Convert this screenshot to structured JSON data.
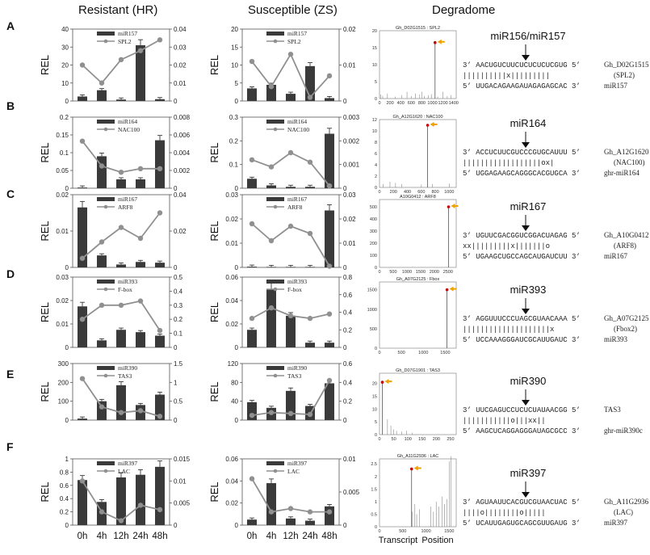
{
  "headers": {
    "resistant": "Resistant (HR)",
    "susceptible": "Susceptible (ZS)",
    "degradome": "Degradome"
  },
  "ylabel": "REL",
  "xaxis": {
    "ticks": [
      "0h",
      "4h",
      "12h",
      "24h",
      "48h"
    ],
    "transcript_label": "Transcript",
    "position_label": "Position"
  },
  "colors": {
    "bar": "#3a3a3a",
    "line": "#909090",
    "peak": "#c00000",
    "arrow": "#f0a000"
  },
  "chart_data": [
    {
      "type": "bar",
      "panel": "A",
      "group": "Resistant (HR)",
      "categories": [
        "0h",
        "4h",
        "12h",
        "24h",
        "48h"
      ],
      "series": [
        {
          "name": "miR157",
          "values": [
            2.5,
            6,
            0.8,
            31,
            1
          ]
        },
        {
          "name": "SPL2",
          "axis": "right",
          "values": [
            0.02,
            0.01,
            0.023,
            0.028,
            0.034
          ]
        }
      ],
      "ylim": [
        0,
        40
      ],
      "y2lim": [
        0,
        0.04
      ],
      "yticks": [
        "0",
        "10",
        "20",
        "30",
        "40"
      ],
      "y2ticks": [
        "0",
        "0.01",
        "0.02",
        "0.03",
        "0.04"
      ],
      "legend": [
        "miR157",
        "SPL2"
      ]
    },
    {
      "type": "bar",
      "panel": "A",
      "group": "Susceptible (ZS)",
      "categories": [
        "0h",
        "4h",
        "12h",
        "24h",
        "48h"
      ],
      "series": [
        {
          "name": "miR157",
          "values": [
            3.5,
            4.5,
            2,
            9.7,
            0.8
          ]
        },
        {
          "name": "SPL2",
          "axis": "right",
          "values": [
            0.011,
            0.004,
            0.013,
            0.001,
            0.007
          ]
        }
      ],
      "ylim": [
        0,
        20
      ],
      "y2lim": [
        0,
        0.02
      ],
      "yticks": [
        "0",
        "5",
        "10",
        "15",
        "20"
      ],
      "y2ticks": [
        "0",
        "0.01",
        "0.02"
      ],
      "legend": [
        "miR157",
        "SPL2"
      ]
    },
    {
      "type": "bar",
      "panel": "B",
      "group": "Resistant (HR)",
      "categories": [
        "0h",
        "4h",
        "12h",
        "24h",
        "48h"
      ],
      "series": [
        {
          "name": "miR164",
          "values": [
            0.002,
            0.09,
            0.025,
            0.025,
            0.135
          ]
        },
        {
          "name": "NAC100",
          "axis": "right",
          "values": [
            0.0053,
            0.0025,
            0.0018,
            0.0022,
            0.0022
          ]
        }
      ],
      "ylim": [
        0,
        0.2
      ],
      "y2lim": [
        0,
        0.008
      ],
      "yticks": [
        "0",
        "0.05",
        "0.1",
        "0.15",
        "0.2"
      ],
      "y2ticks": [
        "0",
        "0.002",
        "0.004",
        "0.006",
        "0.008"
      ],
      "legend": [
        "miR164",
        "NAC100"
      ]
    },
    {
      "type": "bar",
      "panel": "B",
      "group": "Susceptible (ZS)",
      "categories": [
        "0h",
        "4h",
        "12h",
        "24h",
        "48h"
      ],
      "series": [
        {
          "name": "miR164",
          "values": [
            0.04,
            0.012,
            0.006,
            0.006,
            0.23
          ]
        },
        {
          "name": "NAC100",
          "axis": "right",
          "values": [
            0.0012,
            0.0009,
            0.0015,
            0.0011,
            0.0001
          ]
        }
      ],
      "ylim": [
        0,
        0.3
      ],
      "y2lim": [
        0,
        0.003
      ],
      "yticks": [
        "0",
        "0.1",
        "0.2",
        "0.3"
      ],
      "y2ticks": [
        "0",
        "0.001",
        "0.002",
        "0.003"
      ],
      "legend": [
        "miR164",
        "NAC100"
      ]
    },
    {
      "type": "bar",
      "panel": "C",
      "group": "Resistant (HR)",
      "categories": [
        "0h",
        "4h",
        "12h",
        "24h",
        "48h"
      ],
      "series": [
        {
          "name": "miR167",
          "values": [
            0.0165,
            0.0033,
            0.0008,
            0.0015,
            0.0013
          ]
        },
        {
          "name": "ARF8",
          "axis": "right",
          "values": [
            0.005,
            0.014,
            0.022,
            0.016,
            0.03
          ]
        }
      ],
      "ylim": [
        0,
        0.02
      ],
      "y2lim": [
        0,
        0.04
      ],
      "yticks": [
        "0",
        "0.01",
        "0.02"
      ],
      "y2ticks": [
        "0",
        "0.02",
        "0.04"
      ],
      "legend": [
        "miR167",
        "ARF8"
      ]
    },
    {
      "type": "bar",
      "panel": "C",
      "group": "Susceptible (ZS)",
      "categories": [
        "0h",
        "4h",
        "12h",
        "24h",
        "48h"
      ],
      "series": [
        {
          "name": "miR167",
          "values": [
            0.0003,
            0.0002,
            0.0002,
            0.0002,
            0.0235
          ]
        },
        {
          "name": "ARF8",
          "axis": "right",
          "values": [
            0.018,
            0.011,
            0.017,
            0.014,
            0.0005
          ]
        }
      ],
      "ylim": [
        0,
        0.03
      ],
      "y2lim": [
        0,
        0.03
      ],
      "yticks": [
        "0",
        "0.01",
        "0.02",
        "0.03"
      ],
      "y2ticks": [
        "0",
        "0.01",
        "0.02",
        "0.03"
      ],
      "legend": [
        "miR167",
        "ARF8"
      ]
    },
    {
      "type": "bar",
      "panel": "D",
      "group": "Resistant (HR)",
      "categories": [
        "0h",
        "4h",
        "12h",
        "24h",
        "48h"
      ],
      "series": [
        {
          "name": "miR393",
          "values": [
            0.0175,
            0.003,
            0.0075,
            0.0065,
            0.005
          ]
        },
        {
          "name": "F-box",
          "axis": "right",
          "values": [
            0.2,
            0.3,
            0.3,
            0.33,
            0.12
          ]
        }
      ],
      "ylim": [
        0,
        0.03
      ],
      "y2lim": [
        0,
        0.5
      ],
      "yticks": [
        "0",
        "0.01",
        "0.02",
        "0.03"
      ],
      "y2ticks": [
        "0",
        "0.1",
        "0.2",
        "0.3",
        "0.4",
        "0.5"
      ],
      "legend": [
        "miR393",
        "F-box"
      ]
    },
    {
      "type": "bar",
      "panel": "D",
      "group": "Susceptible (ZS)",
      "categories": [
        "0h",
        "4h",
        "12h",
        "24h",
        "48h"
      ],
      "series": [
        {
          "name": "miR393",
          "values": [
            0.015,
            0.05,
            0.027,
            0.004,
            0.004
          ]
        },
        {
          "name": "F-box",
          "axis": "right",
          "values": [
            0.33,
            0.45,
            0.36,
            0.33,
            0.38
          ]
        }
      ],
      "ylim": [
        0,
        0.06
      ],
      "y2lim": [
        0,
        0.8
      ],
      "yticks": [
        "0",
        "0.02",
        "0.04",
        "0.06"
      ],
      "y2ticks": [
        "0",
        "0.2",
        "0.4",
        "0.6",
        "0.8"
      ],
      "legend": [
        "miR393",
        "F-box"
      ]
    },
    {
      "type": "bar",
      "panel": "E",
      "group": "Resistant (HR)",
      "categories": [
        "0h",
        "4h",
        "12h",
        "24h",
        "48h"
      ],
      "series": [
        {
          "name": "miR390",
          "values": [
            8,
            100,
            185,
            80,
            135
          ]
        },
        {
          "name": "TAS3",
          "axis": "right",
          "values": [
            1.1,
            0.35,
            0.2,
            0.25,
            0.1
          ]
        }
      ],
      "ylim": [
        0,
        300
      ],
      "y2lim": [
        0,
        1.5
      ],
      "yticks": [
        "0",
        "100",
        "200",
        "300"
      ],
      "y2ticks": [
        "0",
        "0.5",
        "1",
        "1.5"
      ],
      "legend": [
        "miR390",
        "TAS3"
      ]
    },
    {
      "type": "bar",
      "panel": "E",
      "group": "Susceptible (ZS)",
      "categories": [
        "0h",
        "4h",
        "12h",
        "24h",
        "48h"
      ],
      "series": [
        {
          "name": "miR390",
          "values": [
            38,
            26,
            62,
            30,
            78
          ]
        },
        {
          "name": "TAS3",
          "axis": "right",
          "values": [
            0.05,
            0.08,
            0.07,
            0.06,
            0.42
          ]
        }
      ],
      "ylim": [
        0,
        120
      ],
      "y2lim": [
        0,
        0.6
      ],
      "yticks": [
        "0",
        "40",
        "80",
        "120"
      ],
      "y2ticks": [
        "0",
        "0.2",
        "0.4",
        "0.6"
      ],
      "legend": [
        "miR390",
        "TAS3"
      ]
    },
    {
      "type": "bar",
      "panel": "F",
      "group": "Resistant (HR)",
      "categories": [
        "0h",
        "4h",
        "12h",
        "24h",
        "48h"
      ],
      "series": [
        {
          "name": "miR397",
          "values": [
            0.68,
            0.35,
            0.72,
            0.76,
            0.88
          ]
        },
        {
          "name": "LAC",
          "axis": "right",
          "values": [
            0.01,
            0.003,
            0.001,
            0.0045,
            0.0035
          ]
        }
      ],
      "ylim": [
        0,
        1
      ],
      "y2lim": [
        0,
        0.015
      ],
      "yticks": [
        "0",
        "0.2",
        "0.4",
        "0.6",
        "0.8",
        "1"
      ],
      "y2ticks": [
        "0",
        "0.005",
        "0.01",
        "0.015"
      ],
      "legend": [
        "miR397",
        "LAC"
      ]
    },
    {
      "type": "bar",
      "panel": "F",
      "group": "Susceptible (ZS)",
      "categories": [
        "0h",
        "4h",
        "12h",
        "24h",
        "48h"
      ],
      "series": [
        {
          "name": "miR397",
          "values": [
            0.005,
            0.038,
            0.006,
            0.004,
            0.017
          ]
        },
        {
          "name": "LAC",
          "axis": "right",
          "values": [
            0.007,
            0.002,
            0.0025,
            0.002,
            0.002
          ]
        }
      ],
      "ylim": [
        0,
        0.06
      ],
      "y2lim": [
        0,
        0.01
      ],
      "yticks": [
        "0",
        "0.02",
        "0.04",
        "0.06"
      ],
      "y2ticks": [
        "0",
        "0.005",
        "0.01"
      ],
      "legend": [
        "miR397",
        "LAC"
      ]
    }
  ],
  "degradome": [
    {
      "title": "Gh_D02G1515 : SPL2",
      "yticks": [
        "0",
        "5",
        "10",
        "15",
        "20"
      ],
      "ymax": 20,
      "xticks": [
        "0",
        "200",
        "400",
        "600",
        "800",
        "1000",
        "1200",
        "1400"
      ],
      "xmax": 1450,
      "peak": {
        "x": 1050,
        "y": 16.5
      },
      "bg": [
        [
          20,
          1.2
        ],
        [
          60,
          0.8
        ],
        [
          150,
          1.5
        ],
        [
          300,
          0.6
        ],
        [
          420,
          1
        ],
        [
          520,
          2
        ],
        [
          600,
          0.7
        ],
        [
          680,
          1.5
        ],
        [
          760,
          1.2
        ],
        [
          800,
          2
        ],
        [
          850,
          0.8
        ],
        [
          920,
          1
        ],
        [
          980,
          1.3
        ],
        [
          1100,
          0.6
        ],
        [
          1200,
          2
        ],
        [
          1280,
          0.7
        ],
        [
          1350,
          1
        ]
      ]
    },
    {
      "title": "Gh_A12G1620 : NAC100",
      "yticks": [
        "0",
        "2",
        "4",
        "6",
        "8",
        "10",
        "12"
      ],
      "ymax": 12,
      "xticks": [
        "0",
        "200",
        "400",
        "600",
        "800",
        "1000"
      ],
      "xmax": 1100,
      "peak": {
        "x": 690,
        "y": 11
      },
      "bg": [
        [
          50,
          0.6
        ],
        [
          150,
          1
        ],
        [
          230,
          0.8
        ],
        [
          320,
          0.6
        ],
        [
          600,
          0.5
        ],
        [
          760,
          0.6
        ],
        [
          1000,
          0.7
        ]
      ]
    },
    {
      "title": "A10G0412 : ARF8",
      "yticks": [
        "0",
        "100",
        "200",
        "300",
        "400",
        "500"
      ],
      "ymax": 560,
      "xticks": [
        "0",
        "500",
        "1000",
        "1500",
        "2000",
        "2500"
      ],
      "xmax": 2800,
      "peak": {
        "x": 2520,
        "y": 500
      },
      "bg": [
        [
          400,
          3
        ],
        [
          1200,
          4
        ],
        [
          2000,
          3
        ]
      ]
    },
    {
      "title": "Gh_A07G2125 : Fbox",
      "yticks": [
        "0",
        "500",
        "1000",
        "1500"
      ],
      "ymax": 1700,
      "xticks": [
        "0",
        "500",
        "1000",
        "1500"
      ],
      "xmax": 1750,
      "peak": {
        "x": 1540,
        "y": 1500
      },
      "bg": [
        [
          300,
          8
        ],
        [
          900,
          10
        ],
        [
          1300,
          6
        ]
      ]
    },
    {
      "title": "Gh_D07G1901 : TAS3",
      "yticks": [
        "0",
        "5",
        "10",
        "15",
        "20"
      ],
      "ymax": 24,
      "xticks": [
        "0",
        "50",
        "100",
        "150",
        "200",
        "250"
      ],
      "xmax": 270,
      "peak": {
        "x": 10,
        "y": 20.5
      },
      "bg": [
        [
          28,
          6
        ],
        [
          40,
          3.5
        ],
        [
          50,
          2
        ],
        [
          60,
          1.5
        ],
        [
          78,
          1.2
        ],
        [
          95,
          1.5
        ],
        [
          115,
          0.8
        ]
      ]
    },
    {
      "title": "Gh_A11G2936 : LAC",
      "yticks": [
        "0",
        "0.5",
        "1",
        "1.5",
        "2",
        "2.5"
      ],
      "ymax": 2.7,
      "xticks": [
        "0",
        "500",
        "1000",
        "1500"
      ],
      "xmax": 1650,
      "peak": {
        "x": 690,
        "y": 2.3
      },
      "bg": [
        [
          700,
          0.6
        ],
        [
          760,
          0.9
        ],
        [
          800,
          0.5
        ],
        [
          860,
          0.7
        ],
        [
          1100,
          0.8
        ],
        [
          1160,
          0.6
        ],
        [
          1220,
          1
        ],
        [
          1280,
          0.8
        ],
        [
          1350,
          1.2
        ],
        [
          1400,
          0.9
        ],
        [
          1450,
          1.1
        ],
        [
          1500,
          2.6
        ],
        [
          1540,
          2.8
        ]
      ]
    }
  ],
  "alignments": [
    {
      "panel": "A",
      "title": "miR156/miR157",
      "l1": "3’ AACUGUCUUCUCUCUCUCGUG 5’",
      "l2": "   ||||||||||x|||||||||",
      "l3": "5’ UUGACAGAAGAUAGAGAGCAC 3’",
      "t1": "Gh_D02G1515",
      "t2": "(SPL2)",
      "t3": "miR157"
    },
    {
      "panel": "B",
      "title": "miR164",
      "l1": "3’ ACCUCUUCGUCCCGUGCAUUU 5’",
      "l2": "   ||||||||||||||||||ox|",
      "l3": "5’ UGGAGAAGCAGGGCACGUGCA 3’",
      "t1": "Gh_A12G1620",
      "t2": "(NAC100)",
      "t3": "ghr-miR164"
    },
    {
      "panel": "C",
      "title": "miR167",
      "l1": "3’ UGUUCGACGGUCGGACUAGAG 5’",
      "l2": "   xx|||||||||x|||||||o",
      "l3": "5’ UGAAGCUGCCAGCAUGAUCUU 3’",
      "t1": "Gh_A10G0412",
      "t2": "(ARF8)",
      "t3": "miR167"
    },
    {
      "panel": "D",
      "title": "miR393",
      "l1": "3’ AGGUUUCCCUAGCGUAACAAA 5’",
      "l2": "   ||||||||||||||||||||x",
      "l3": "5’ UCCAAAGGGAUCGCAUUGAUC 3’",
      "t1": "Gh_A07G2125",
      "t2": "(Fbox2)",
      "t3": "miR393"
    },
    {
      "panel": "E",
      "title": "miR390",
      "l1": "3’ UUCGAGUCCUCUCUAUAACGG 5’",
      "l2": "   |||||||||||o|||xx||",
      "l3": "5’ AAGCUCAGGAGGGAUAGCGCC 3’",
      "t1": "TAS3",
      "t2": "",
      "t3": "ghr-miR390c"
    },
    {
      "panel": "F",
      "title": "miR397",
      "l1": "3’ AGUAAUUCACGUCGUAACUAC 5’",
      "l2": "   ||||o||||||||o|||||",
      "l3": "5’ UCAUUGAGUGCAGCGUUGAUG 3’",
      "t1": "Gh_A11G2936",
      "t2": "(LAC)",
      "t3": "miR397"
    }
  ]
}
